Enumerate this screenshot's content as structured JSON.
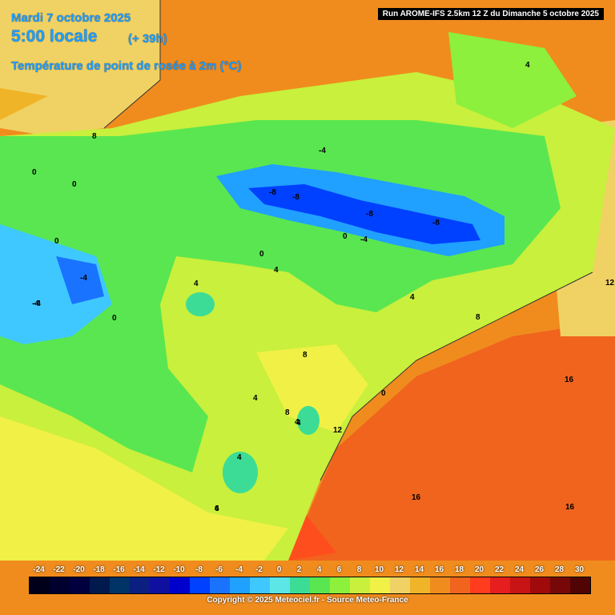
{
  "header": {
    "date": "Mardi 7 octobre 2025",
    "time": "5:00 locale",
    "lead": "(+ 39h)",
    "parameter": "Température de point de rosée à 2m (°C)"
  },
  "run_info": "Run AROME-IFS 2.5km 12 Z du Dimanche 5 octobre 2025",
  "scale": {
    "ticks": [
      "-24",
      "-22",
      "-20",
      "-18",
      "-16",
      "-14",
      "-12",
      "-10",
      "-8",
      "-6",
      "-4",
      "-2",
      "0",
      "2",
      "4",
      "6",
      "8",
      "10",
      "12",
      "14",
      "16",
      "18",
      "20",
      "22",
      "24",
      "26",
      "28",
      "30"
    ],
    "colors": [
      "#00001a",
      "#00002e",
      "#00003f",
      "#001a4d",
      "#003366",
      "#0a1f80",
      "#1010a0",
      "#0000cc",
      "#0040ff",
      "#1a73ff",
      "#20a0ff",
      "#3fc8ff",
      "#5ce6e6",
      "#3cdc96",
      "#5ae650",
      "#8cf03c",
      "#c8f03c",
      "#f0f046",
      "#f0d264",
      "#f0b428",
      "#f08c1e",
      "#f0641e",
      "#ff3c1e",
      "#e61e1e",
      "#c81414",
      "#a00a0a",
      "#780808",
      "#500404"
    ]
  },
  "copyright": "Copyright © 2025 Meteociel.fr - Source Meteo-France",
  "map_labels": [
    "8",
    "0",
    "0",
    "-8",
    "-8",
    "-8",
    "-8",
    "-4",
    "0",
    "-4",
    "0",
    "0",
    "-4",
    "-4",
    "0",
    "4",
    "4",
    "4",
    "4",
    "8",
    "8",
    "8",
    "12",
    "0",
    "4",
    "4",
    "4",
    "6",
    "16",
    "16",
    "16",
    "12",
    "4",
    "4",
    "-4"
  ],
  "colors": {
    "header_text": "#1ea0ff",
    "sea": "#f07820",
    "land_base": "#8ce650"
  }
}
